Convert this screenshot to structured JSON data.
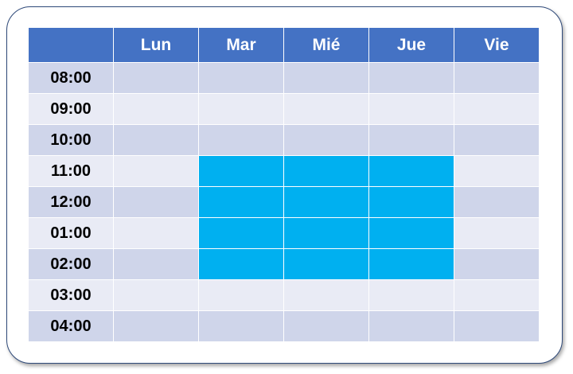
{
  "schedule": {
    "corner_label": "",
    "days": [
      "Lun",
      "Mar",
      "Mié",
      "Jue",
      "Vie"
    ],
    "times": [
      "08:00",
      "09:00",
      "10:00",
      "11:00",
      "12:00",
      "01:00",
      "02:00",
      "03:00",
      "04:00"
    ],
    "booked_slots": {
      "11:00": [
        "Mar",
        "Mié",
        "Jue"
      ],
      "12:00": [
        "Mar",
        "Mié",
        "Jue"
      ],
      "01:00": [
        "Mar",
        "Mié",
        "Jue"
      ],
      "02:00": [
        "Mar",
        "Mié",
        "Jue"
      ]
    }
  },
  "colors": {
    "header": "#4472c4",
    "row_dark": "#cfd5ea",
    "row_light": "#e9ebf5",
    "booked": "#00b0f0",
    "card_border": "#2f4a7a"
  }
}
